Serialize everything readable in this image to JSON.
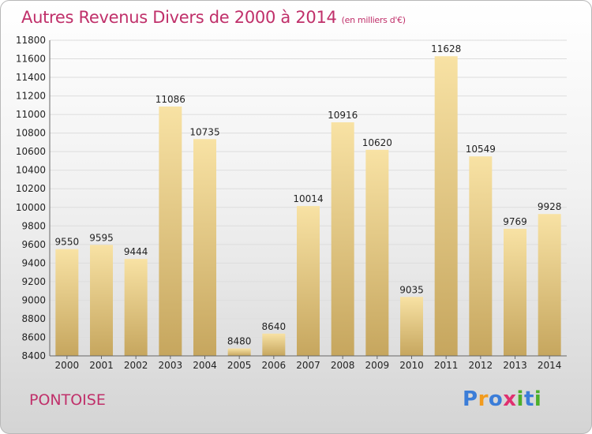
{
  "title": "Autres Revenus Divers de 2000 à 2014",
  "title_unit": "(en milliers d'€)",
  "commune": "PONTOISE",
  "brand": {
    "letters": [
      "P",
      "r",
      "o",
      "x",
      "i",
      "t",
      "i"
    ],
    "colors": [
      "#3b7dd8",
      "#f29b1d",
      "#3b7dd8",
      "#e0306f",
      "#4caf2a",
      "#3b7dd8",
      "#4caf2a"
    ]
  },
  "colors": {
    "title": "#c0306a",
    "bar_light": "#f7e0a0",
    "bar_dark": "#c8a862",
    "grid": "#dcdcdc"
  },
  "chart_data": {
    "type": "bar",
    "categories": [
      "2000",
      "2001",
      "2002",
      "2003",
      "2004",
      "2005",
      "2006",
      "2007",
      "2008",
      "2009",
      "2010",
      "2011",
      "2012",
      "2013",
      "2014"
    ],
    "values": [
      9550,
      9595,
      9444,
      11086,
      10735,
      8480,
      8640,
      10014,
      10916,
      10620,
      9035,
      11628,
      10549,
      9769,
      9928
    ],
    "ylim": [
      8400,
      11800
    ],
    "yticks": [
      8400,
      8600,
      8800,
      9000,
      9200,
      9400,
      9600,
      9800,
      10000,
      10200,
      10400,
      10600,
      10800,
      11000,
      11200,
      11400,
      11600,
      11800
    ],
    "grid": true
  }
}
